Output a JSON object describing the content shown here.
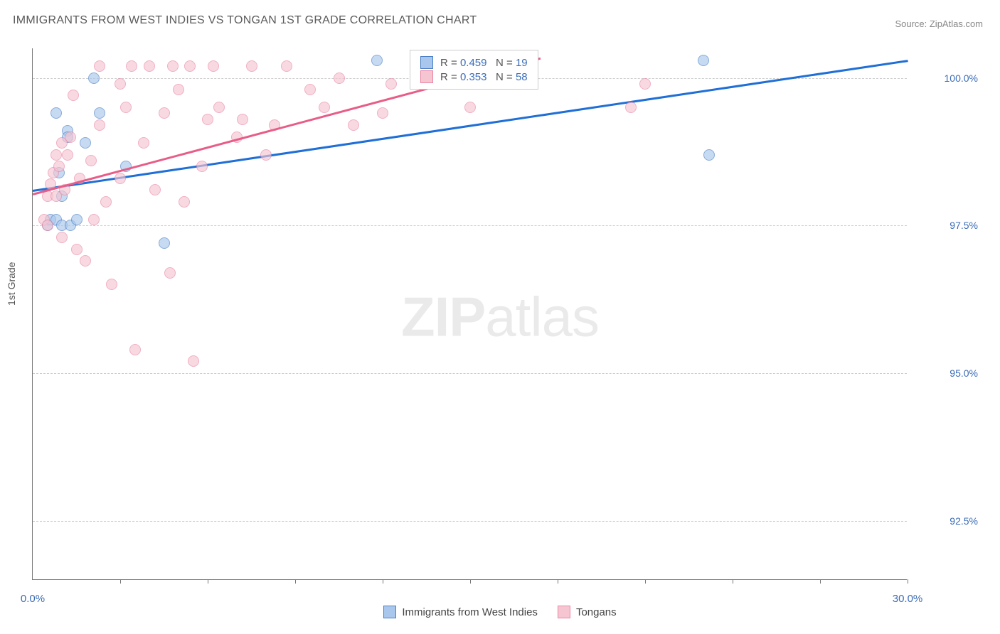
{
  "title": "IMMIGRANTS FROM WEST INDIES VS TONGAN 1ST GRADE CORRELATION CHART",
  "source_label": "Source: ZipAtlas.com",
  "yaxis_label": "1st Grade",
  "watermark": {
    "bold": "ZIP",
    "rest": "atlas"
  },
  "chart": {
    "type": "scatter",
    "xlim": [
      0,
      30
    ],
    "ylim": [
      91.5,
      100.5
    ],
    "xtick_marks": [
      3,
      6,
      9,
      12,
      15,
      18,
      21,
      24,
      27,
      30
    ],
    "xtick_labels": [
      {
        "x": 0,
        "label": "0.0%"
      },
      {
        "x": 30,
        "label": "30.0%"
      }
    ],
    "ytick_lines": [
      92.5,
      95.0,
      97.5,
      100.0
    ],
    "ytick_labels": [
      "92.5%",
      "95.0%",
      "97.5%",
      "100.0%"
    ],
    "background_color": "#ffffff",
    "grid_color": "#cccccc",
    "axis_color": "#777777",
    "label_color": "#3b6db8",
    "series": [
      {
        "name": "Immigrants from West Indies",
        "color_fill": "#a9c7ec",
        "color_stroke": "#4a7fc4",
        "color_line": "#1f6fd6",
        "R": "0.459",
        "N": "19",
        "trend": {
          "x1": 0,
          "y1": 98.1,
          "x2": 30,
          "y2": 100.3
        },
        "points": [
          {
            "x": 0.5,
            "y": 97.5
          },
          {
            "x": 0.6,
            "y": 97.6
          },
          {
            "x": 0.8,
            "y": 97.6
          },
          {
            "x": 1.0,
            "y": 97.5
          },
          {
            "x": 1.3,
            "y": 97.5
          },
          {
            "x": 1.5,
            "y": 97.6
          },
          {
            "x": 0.8,
            "y": 99.4
          },
          {
            "x": 1.2,
            "y": 99.1
          },
          {
            "x": 1.2,
            "y": 99.0
          },
          {
            "x": 2.1,
            "y": 100.0
          },
          {
            "x": 2.3,
            "y": 99.4
          },
          {
            "x": 3.2,
            "y": 98.5
          },
          {
            "x": 4.5,
            "y": 97.2
          },
          {
            "x": 11.8,
            "y": 100.3
          },
          {
            "x": 23.0,
            "y": 100.3
          },
          {
            "x": 23.2,
            "y": 98.7
          },
          {
            "x": 1.8,
            "y": 98.9
          },
          {
            "x": 0.9,
            "y": 98.4
          },
          {
            "x": 1.0,
            "y": 98.0
          }
        ]
      },
      {
        "name": "Tongans",
        "color_fill": "#f5c6d2",
        "color_stroke": "#e985a3",
        "color_line": "#e85d88",
        "R": "0.353",
        "N": "58",
        "trend": {
          "x1": 0,
          "y1": 98.05,
          "x2": 17.4,
          "y2": 100.35
        },
        "points": [
          {
            "x": 0.4,
            "y": 97.6
          },
          {
            "x": 0.5,
            "y": 97.5
          },
          {
            "x": 0.5,
            "y": 98.0
          },
          {
            "x": 0.6,
            "y": 98.2
          },
          {
            "x": 0.7,
            "y": 98.4
          },
          {
            "x": 0.8,
            "y": 98.7
          },
          {
            "x": 0.8,
            "y": 98.0
          },
          {
            "x": 0.9,
            "y": 98.5
          },
          {
            "x": 1.0,
            "y": 98.9
          },
          {
            "x": 1.0,
            "y": 97.3
          },
          {
            "x": 1.1,
            "y": 98.1
          },
          {
            "x": 1.2,
            "y": 98.7
          },
          {
            "x": 1.3,
            "y": 99.0
          },
          {
            "x": 1.5,
            "y": 97.1
          },
          {
            "x": 1.6,
            "y": 98.3
          },
          {
            "x": 1.8,
            "y": 96.9
          },
          {
            "x": 2.0,
            "y": 98.6
          },
          {
            "x": 2.1,
            "y": 97.6
          },
          {
            "x": 2.3,
            "y": 99.2
          },
          {
            "x": 2.5,
            "y": 97.9
          },
          {
            "x": 2.7,
            "y": 96.5
          },
          {
            "x": 3.0,
            "y": 98.3
          },
          {
            "x": 3.2,
            "y": 99.5
          },
          {
            "x": 3.4,
            "y": 100.2
          },
          {
            "x": 3.5,
            "y": 95.4
          },
          {
            "x": 3.8,
            "y": 98.9
          },
          {
            "x": 4.0,
            "y": 100.2
          },
          {
            "x": 4.2,
            "y": 98.1
          },
          {
            "x": 4.5,
            "y": 99.4
          },
          {
            "x": 4.7,
            "y": 96.7
          },
          {
            "x": 4.8,
            "y": 100.2
          },
          {
            "x": 5.0,
            "y": 99.8
          },
          {
            "x": 5.2,
            "y": 97.9
          },
          {
            "x": 5.4,
            "y": 100.2
          },
          {
            "x": 5.5,
            "y": 95.2
          },
          {
            "x": 5.8,
            "y": 98.5
          },
          {
            "x": 6.0,
            "y": 99.3
          },
          {
            "x": 6.2,
            "y": 100.2
          },
          {
            "x": 6.4,
            "y": 99.5
          },
          {
            "x": 7.0,
            "y": 99.0
          },
          {
            "x": 7.2,
            "y": 99.3
          },
          {
            "x": 7.5,
            "y": 100.2
          },
          {
            "x": 8.0,
            "y": 98.7
          },
          {
            "x": 8.3,
            "y": 99.2
          },
          {
            "x": 8.7,
            "y": 100.2
          },
          {
            "x": 9.5,
            "y": 99.8
          },
          {
            "x": 10.0,
            "y": 99.5
          },
          {
            "x": 10.5,
            "y": 100.0
          },
          {
            "x": 11.0,
            "y": 99.2
          },
          {
            "x": 12.0,
            "y": 99.4
          },
          {
            "x": 12.3,
            "y": 99.9
          },
          {
            "x": 15.0,
            "y": 99.5
          },
          {
            "x": 17.0,
            "y": 100.2
          },
          {
            "x": 20.5,
            "y": 99.5
          },
          {
            "x": 21.0,
            "y": 99.9
          },
          {
            "x": 2.3,
            "y": 100.2
          },
          {
            "x": 3.0,
            "y": 99.9
          },
          {
            "x": 1.4,
            "y": 99.7
          }
        ]
      }
    ]
  },
  "legend_box": {
    "R_prefix": "R =",
    "N_prefix": "N ="
  },
  "legend_bottom": [
    {
      "swatch_fill": "#a9c7ec",
      "swatch_stroke": "#4a7fc4",
      "label": "Immigrants from West Indies"
    },
    {
      "swatch_fill": "#f5c6d2",
      "swatch_stroke": "#e985a3",
      "label": "Tongans"
    }
  ]
}
